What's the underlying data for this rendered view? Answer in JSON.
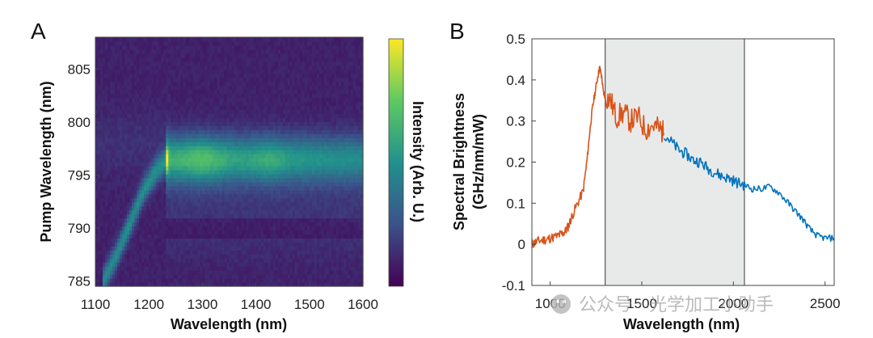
{
  "chart_data": [
    {
      "type": "heatmap",
      "panel_label": "A",
      "xlabel": "Wavelength (nm)",
      "ylabel": "Pump Wavelength (nm)",
      "colorbar_label": "Intensity (Arb. U.)",
      "colormap": "viridis",
      "xlim": [
        1100,
        1600
      ],
      "ylim": [
        784.5,
        808
      ],
      "xticks": [
        "1100",
        "1200",
        "1300",
        "1400",
        "1500",
        "1600"
      ],
      "yticks": [
        "785",
        "790",
        "795",
        "800",
        "805"
      ],
      "features": {
        "emission_band": {
          "pump_center": 796.5,
          "pump_halfwidth": 2.2,
          "start_wavelength": 1230,
          "peak_intensity": 0.72
        },
        "dark_band": {
          "pump_center": 790,
          "wavelength_from": 1230
        },
        "diagonal_ridge": [
          {
            "wavelength": 1115,
            "pump": 785.0
          },
          {
            "wavelength": 1140,
            "pump": 787.5
          },
          {
            "wavelength": 1165,
            "pump": 790.5
          },
          {
            "wavelength": 1190,
            "pump": 793.5
          },
          {
            "wavelength": 1215,
            "pump": 795.5
          },
          {
            "wavelength": 1235,
            "pump": 796.5
          }
        ]
      }
    },
    {
      "type": "line",
      "panel_label": "B",
      "xlabel": "Wavelength (nm)",
      "ylabel_line1": "Spectral Brightness",
      "ylabel_line2": "(GHz/nm/mW)",
      "xlim": [
        900,
        2550
      ],
      "ylim": [
        -0.1,
        0.5
      ],
      "xticks": [
        "1000",
        "1500",
        "2000",
        "2500"
      ],
      "yticks": [
        "-0.1",
        "0",
        "0.1",
        "0.2",
        "0.3",
        "0.4",
        "0.5"
      ],
      "shaded_region": [
        1300,
        2060
      ],
      "shade_color": "#e8eaea",
      "series": [
        {
          "name": "orange",
          "color": "#d95319",
          "x": [
            900,
            920,
            950,
            980,
            1000,
            1040,
            1060,
            1080,
            1100,
            1120,
            1150,
            1180,
            1200,
            1215,
            1230,
            1245,
            1260,
            1270,
            1280,
            1290,
            1300,
            1330,
            1360,
            1400,
            1440,
            1480,
            1520,
            1560,
            1600,
            1620
          ],
          "y": [
            0.0,
            0.005,
            0.01,
            0.012,
            0.015,
            0.02,
            0.025,
            0.03,
            0.045,
            0.07,
            0.1,
            0.13,
            0.2,
            0.27,
            0.33,
            0.37,
            0.41,
            0.43,
            0.41,
            0.37,
            0.36,
            0.35,
            0.31,
            0.32,
            0.3,
            0.31,
            0.28,
            0.29,
            0.28,
            0.27
          ]
        },
        {
          "name": "blue",
          "color": "#0072bd",
          "x": [
            1620,
            1660,
            1700,
            1740,
            1780,
            1820,
            1860,
            1900,
            1940,
            1980,
            2020,
            2060,
            2100,
            2150,
            2200,
            2250,
            2300,
            2340,
            2380,
            2420,
            2460,
            2500,
            2550
          ],
          "y": [
            0.27,
            0.25,
            0.23,
            0.22,
            0.205,
            0.2,
            0.185,
            0.175,
            0.165,
            0.16,
            0.15,
            0.145,
            0.135,
            0.135,
            0.14,
            0.125,
            0.1,
            0.08,
            0.06,
            0.035,
            0.02,
            0.015,
            0.015
          ]
        }
      ]
    }
  ],
  "watermark": {
    "icon": "wechat-icon",
    "text": "公众号 · 光学加工小助手"
  }
}
